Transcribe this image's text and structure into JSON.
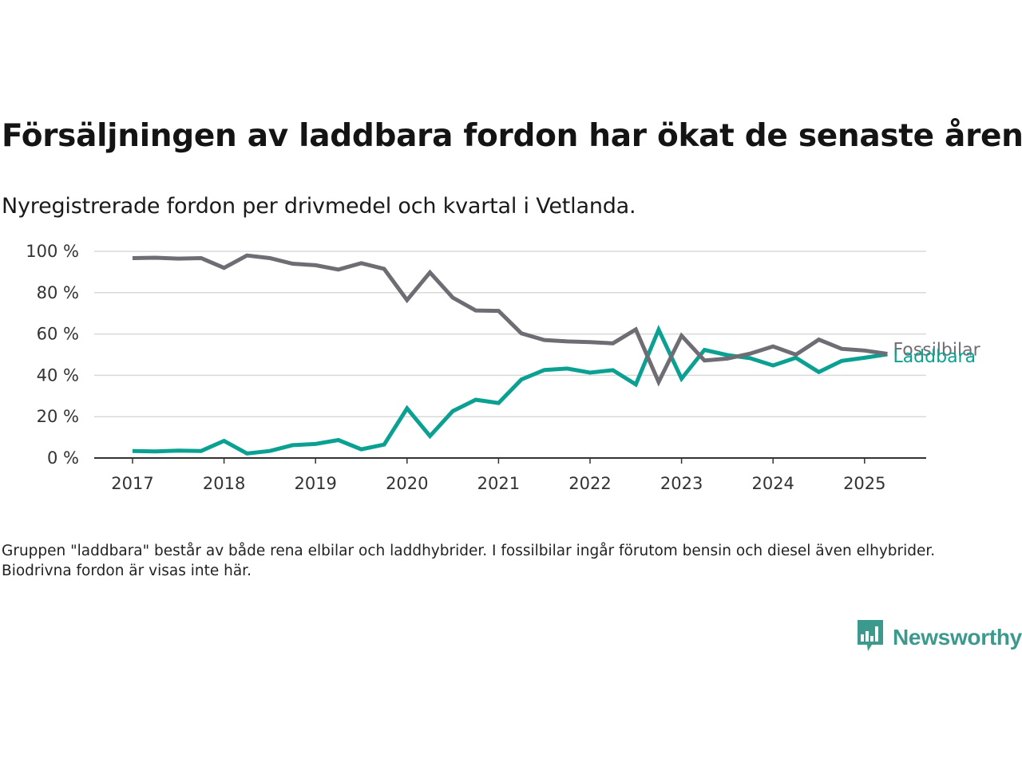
{
  "title": "Försäljningen av laddbara fordon har ökat de senaste åren",
  "subtitle": "Nyregistrerade fordon per drivmedel och kvartal i Vetlanda.",
  "note": "Gruppen \"laddbara\" består av både rena elbilar och laddhybrider. I fossilbilar ingår förutom bensin och diesel även elhybrider. Biodrivna fordon är visas inte här.",
  "brand": {
    "name": "Newsworthy",
    "icon": "newsworthy-logo-icon",
    "color": "#3b9a8d"
  },
  "chart_data": {
    "type": "line",
    "x": [
      "2017-Q1",
      "2017-Q2",
      "2017-Q3",
      "2017-Q4",
      "2018-Q1",
      "2018-Q2",
      "2018-Q3",
      "2018-Q4",
      "2019-Q1",
      "2019-Q2",
      "2019-Q3",
      "2019-Q4",
      "2020-Q1",
      "2020-Q2",
      "2020-Q3",
      "2020-Q4",
      "2021-Q1",
      "2021-Q2",
      "2021-Q3",
      "2021-Q4",
      "2022-Q1",
      "2022-Q2",
      "2022-Q3",
      "2022-Q4",
      "2023-Q1",
      "2023-Q2",
      "2023-Q3",
      "2023-Q4",
      "2024-Q1",
      "2024-Q2",
      "2024-Q3",
      "2024-Q4",
      "2025-Q1",
      "2025-Q2"
    ],
    "x_ticks": [
      "2017",
      "2018",
      "2019",
      "2020",
      "2021",
      "2022",
      "2023",
      "2024",
      "2025"
    ],
    "y_ticks": [
      "0 %",
      "20 %",
      "40 %",
      "60 %",
      "80 %",
      "100 %"
    ],
    "ylim": [
      0,
      100
    ],
    "grid": true,
    "series": [
      {
        "name": "Fossilbilar",
        "color": "#6e6d74",
        "values": [
          96.7,
          96.9,
          96.5,
          96.7,
          92,
          98,
          96.7,
          94,
          93.3,
          91.2,
          94.3,
          91.5,
          76.4,
          89.8,
          77.6,
          71.4,
          71.2,
          60.3,
          57.1,
          56.4,
          56.1,
          55.5,
          62.2,
          36.8,
          59.2,
          47.2,
          48.1,
          50.5,
          54,
          50,
          57.3,
          52.8,
          52,
          50.4
        ]
      },
      {
        "name": "Laddbara",
        "color": "#0aa192",
        "values": [
          3.4,
          3.2,
          3.6,
          3.4,
          8.3,
          2.2,
          3.4,
          6.2,
          6.8,
          8.7,
          4.2,
          6.5,
          24,
          10.6,
          22.7,
          28.2,
          26.6,
          38,
          42.6,
          43.3,
          41.3,
          42.5,
          35.6,
          62.1,
          38.4,
          52.3,
          49.8,
          48.3,
          44.8,
          48.5,
          41.6,
          47,
          48.5,
          50.2
        ]
      }
    ]
  }
}
